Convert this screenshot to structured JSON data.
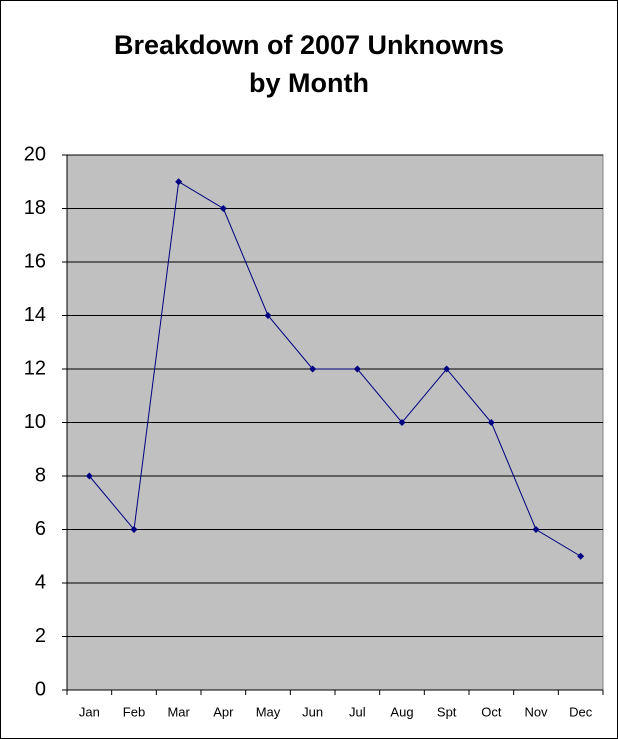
{
  "chart_data": {
    "type": "line",
    "title": [
      "Breakdown of 2007 Unknowns",
      "by Month"
    ],
    "categories": [
      "Jan",
      "Feb",
      "Mar",
      "Apr",
      "May",
      "Jun",
      "Jul",
      "Aug",
      "Spt",
      "Oct",
      "Nov",
      "Dec"
    ],
    "values": [
      8,
      6,
      19,
      18,
      14,
      12,
      12,
      10,
      12,
      10,
      6,
      5
    ],
    "color": "#000080",
    "plot_background": "#c0c0c0",
    "ylim": [
      0,
      20
    ],
    "yticks": [
      0,
      2,
      4,
      6,
      8,
      10,
      12,
      14,
      16,
      18,
      20
    ],
    "grid": true
  }
}
